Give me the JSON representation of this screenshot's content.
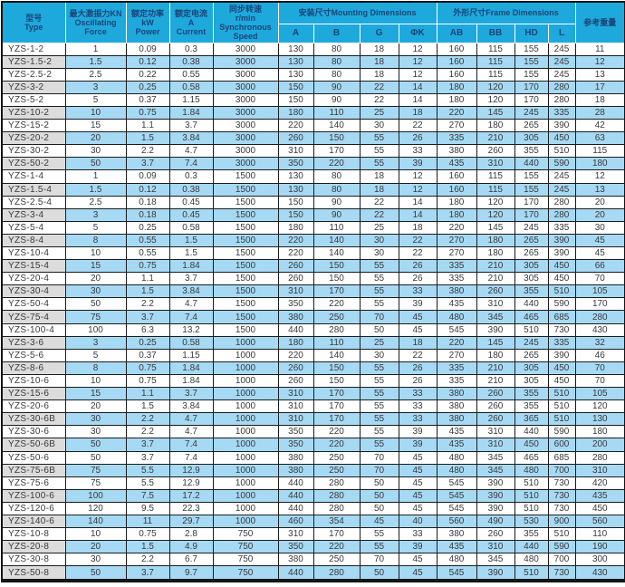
{
  "colors": {
    "header_bg": "#1ea9dc",
    "header_text": "#1a4478",
    "row_blue": "#a6d9f4",
    "row_gray": "#dcdcdc",
    "body_text": "#3a3a3a"
  },
  "table": {
    "header": {
      "type": "型号\nType",
      "force": "最大激振力KN\nOscillating\nForce",
      "power": "额定功率\nkW\nPower",
      "current": "额定电流\nA\nCurrent",
      "speed": "同步转速\nr/min\nSynchronous\nSpeed",
      "mounting_group": "安装尺寸Mounting Dimensions",
      "frame_group": "外形尺寸Frame Dimensions",
      "weight": "参考重量",
      "mounting_cols": [
        "A",
        "B",
        "G",
        "ΦK"
      ],
      "frame_cols": [
        "AB",
        "BB",
        "HD",
        "L"
      ]
    },
    "rows": [
      [
        "YZS-1-2",
        "1",
        "0.09",
        "0.3",
        "3000",
        "130",
        "80",
        "18",
        "12",
        "160",
        "115",
        "155",
        "245",
        "11"
      ],
      [
        "YZS-1.5-2",
        "1.5",
        "0.12",
        "0.38",
        "3000",
        "130",
        "80",
        "18",
        "12",
        "160",
        "115",
        "155",
        "245",
        "12"
      ],
      [
        "YZS-2.5-2",
        "2.5",
        "0.22",
        "0.55",
        "3000",
        "130",
        "80",
        "18",
        "12",
        "160",
        "115",
        "155",
        "245",
        "13"
      ],
      [
        "YZS-3-2",
        "3",
        "0.25",
        "0.58",
        "3000",
        "150",
        "90",
        "22",
        "14",
        "180",
        "120",
        "170",
        "280",
        "17"
      ],
      [
        "YZS-5-2",
        "5",
        "0.37",
        "1.15",
        "3000",
        "150",
        "90",
        "22",
        "14",
        "180",
        "120",
        "170",
        "280",
        "18"
      ],
      [
        "YZS-10-2",
        "10",
        "0.75",
        "1.84",
        "3000",
        "180",
        "110",
        "25",
        "18",
        "220",
        "145",
        "245",
        "335",
        "28"
      ],
      [
        "YZS-15-2",
        "15",
        "1.1",
        "3.7",
        "3000",
        "220",
        "140",
        "30",
        "22",
        "270",
        "180",
        "265",
        "390",
        "42"
      ],
      [
        "YZS-20-2",
        "20",
        "1.5",
        "3.84",
        "3000",
        "260",
        "150",
        "55",
        "26",
        "335",
        "210",
        "305",
        "450",
        "63"
      ],
      [
        "YZS-30-2",
        "30",
        "2.2",
        "4.7",
        "3000",
        "310",
        "170",
        "55",
        "33",
        "380",
        "260",
        "355",
        "510",
        "115"
      ],
      [
        "YZS-50-2",
        "50",
        "3.7",
        "7.4",
        "3000",
        "350",
        "220",
        "55",
        "39",
        "435",
        "310",
        "440",
        "590",
        "180"
      ],
      [
        "YZS-1-4",
        "1",
        "0.09",
        "0.3",
        "1500",
        "130",
        "80",
        "18",
        "12",
        "160",
        "115",
        "155",
        "245",
        "12"
      ],
      [
        "YZS-1.5-4",
        "1.5",
        "0.12",
        "0.38",
        "1500",
        "130",
        "80",
        "18",
        "12",
        "160",
        "115",
        "155",
        "245",
        "13"
      ],
      [
        "YZS-2.5-4",
        "2.5",
        "0.18",
        "0.45",
        "1500",
        "150",
        "90",
        "22",
        "14",
        "180",
        "120",
        "170",
        "280",
        "20"
      ],
      [
        "YZS-3-4",
        "3",
        "0.18",
        "0.45",
        "1500",
        "150",
        "90",
        "22",
        "14",
        "180",
        "120",
        "170",
        "280",
        "20"
      ],
      [
        "YZS-5-4",
        "5",
        "0.25",
        "0.58",
        "1500",
        "180",
        "110",
        "25",
        "18",
        "220",
        "145",
        "245",
        "335",
        "30"
      ],
      [
        "YZS-8-4",
        "8",
        "0.55",
        "1.5",
        "1500",
        "220",
        "140",
        "30",
        "22",
        "270",
        "180",
        "265",
        "390",
        "45"
      ],
      [
        "YZS-10-4",
        "10",
        "0.55",
        "1.5",
        "1500",
        "220",
        "140",
        "30",
        "22",
        "270",
        "180",
        "265",
        "390",
        "45"
      ],
      [
        "YZS-15-4",
        "15",
        "0.75",
        "1.84",
        "1500",
        "260",
        "150",
        "55",
        "26",
        "335",
        "210",
        "305",
        "450",
        "66"
      ],
      [
        "YZS-20-4",
        "20",
        "1.1",
        "3.7",
        "1500",
        "260",
        "150",
        "55",
        "26",
        "335",
        "210",
        "305",
        "450",
        "70"
      ],
      [
        "YZS-30-4",
        "30",
        "1.5",
        "3.84",
        "1500",
        "310",
        "170",
        "55",
        "33",
        "380",
        "260",
        "355",
        "510",
        "105"
      ],
      [
        "YZS-50-4",
        "50",
        "2.2",
        "4.7",
        "1500",
        "350",
        "220",
        "55",
        "39",
        "435",
        "310",
        "440",
        "590",
        "170"
      ],
      [
        "YZS-75-4",
        "75",
        "3.7",
        "7.4",
        "1500",
        "380",
        "250",
        "70",
        "45",
        "480",
        "345",
        "465",
        "685",
        "280"
      ],
      [
        "YZS-100-4",
        "100",
        "6.3",
        "13.2",
        "1500",
        "440",
        "280",
        "50",
        "45",
        "545",
        "390",
        "510",
        "730",
        "430"
      ],
      [
        "YZS-3-6",
        "3",
        "0.25",
        "0.58",
        "1000",
        "180",
        "110",
        "25",
        "18",
        "220",
        "145",
        "245",
        "335",
        "32"
      ],
      [
        "YZS-5-6",
        "5",
        "0.37",
        "1.15",
        "1000",
        "220",
        "140",
        "30",
        "22",
        "270",
        "180",
        "265",
        "390",
        "46"
      ],
      [
        "YZS-8-6",
        "8",
        "0.75",
        "1.84",
        "1000",
        "260",
        "150",
        "55",
        "26",
        "335",
        "210",
        "305",
        "450",
        "70"
      ],
      [
        "YZS-10-6",
        "10",
        "0.75",
        "1.84",
        "1000",
        "260",
        "150",
        "55",
        "26",
        "335",
        "210",
        "305",
        "450",
        "70"
      ],
      [
        "YZS-15-6",
        "15",
        "1.1",
        "3.7",
        "1000",
        "310",
        "170",
        "55",
        "33",
        "380",
        "260",
        "355",
        "510",
        "105"
      ],
      [
        "YZS-20-6",
        "20",
        "1.5",
        "3.84",
        "1000",
        "310",
        "170",
        "55",
        "33",
        "380",
        "260",
        "355",
        "510",
        "120"
      ],
      [
        "YZS-30-6B",
        "30",
        "2.2",
        "4.7",
        "1000",
        "310",
        "170",
        "55",
        "33",
        "380",
        "260",
        "365",
        "510",
        "130"
      ],
      [
        "YZS-30-6",
        "30",
        "2.2",
        "4.7",
        "1000",
        "350",
        "220",
        "55",
        "39",
        "435",
        "310",
        "440",
        "590",
        "180"
      ],
      [
        "YZS-50-6B",
        "50",
        "3.7",
        "7.4",
        "1000",
        "350",
        "220",
        "55",
        "39",
        "435",
        "310",
        "450",
        "600",
        "200"
      ],
      [
        "YZS-50-6",
        "50",
        "3.7",
        "7.4",
        "1000",
        "380",
        "250",
        "70",
        "45",
        "480",
        "345",
        "465",
        "685",
        "280"
      ],
      [
        "YZS-75-6B",
        "75",
        "5.5",
        "12.9",
        "1000",
        "380",
        "250",
        "70",
        "45",
        "480",
        "345",
        "480",
        "700",
        "310"
      ],
      [
        "YZS-75-6",
        "75",
        "5.5",
        "12.9",
        "1000",
        "440",
        "280",
        "50",
        "45",
        "545",
        "390",
        "510",
        "730",
        "420"
      ],
      [
        "YZS-100-6",
        "100",
        "7.5",
        "17.2",
        "1000",
        "440",
        "280",
        "50",
        "45",
        "545",
        "390",
        "510",
        "730",
        "435"
      ],
      [
        "YZS-120-6",
        "120",
        "9.5",
        "22.3",
        "1000",
        "440",
        "280",
        "50",
        "45",
        "545",
        "390",
        "510",
        "730",
        "450"
      ],
      [
        "YZS-140-6",
        "140",
        "11",
        "29.7",
        "1000",
        "460",
        "354",
        "45",
        "40",
        "560",
        "490",
        "530",
        "900",
        "560"
      ],
      [
        "YZS-10-8",
        "10",
        "0.75",
        "2.8",
        "750",
        "310",
        "170",
        "55",
        "33",
        "380",
        "260",
        "355",
        "510",
        "110"
      ],
      [
        "YZS-20-8",
        "20",
        "1.5",
        "4.9",
        "750",
        "350",
        "220",
        "55",
        "39",
        "435",
        "310",
        "440",
        "590",
        "190"
      ],
      [
        "YZS-30-8",
        "30",
        "2.2",
        "6.7",
        "750",
        "380",
        "250",
        "70",
        "45",
        "480",
        "345",
        "480",
        "700",
        "300"
      ],
      [
        "YZS-50-8",
        "50",
        "3.7",
        "9.7",
        "750",
        "440",
        "280",
        "50",
        "45",
        "545",
        "390",
        "510",
        "730",
        "430"
      ]
    ]
  }
}
